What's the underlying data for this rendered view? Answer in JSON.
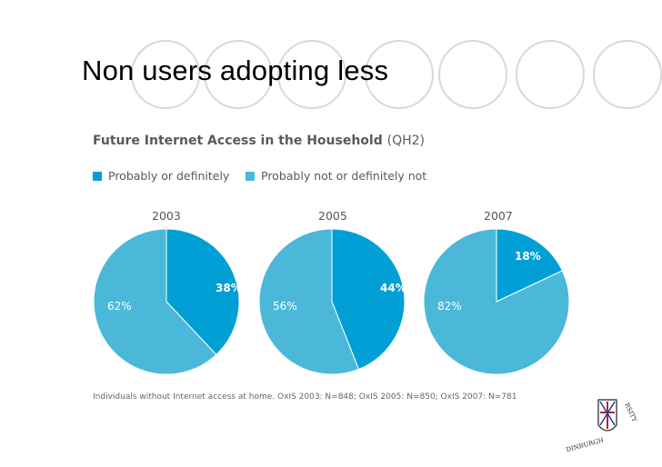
{
  "slide": {
    "title": "Non users adopting less"
  },
  "colors": {
    "probably": "#00A0D6",
    "not": "#4BB8D9",
    "ring": "#D9D9D9",
    "label_light": "#ffffff",
    "label_dark": "#ffffff"
  },
  "chart_data": {
    "type": "pie",
    "title": "Future Internet Access in the Household",
    "title_suffix": "(QH2)",
    "legend": [
      {
        "name": "Probably or definitely",
        "color": "#00A0D6"
      },
      {
        "name": "Probably not or definitely not",
        "color": "#4BB8D9"
      }
    ],
    "pies": [
      {
        "year": "2003",
        "slices": [
          {
            "name": "Probably or definitely",
            "value": 38,
            "label": "38%"
          },
          {
            "name": "Probably not or definitely not",
            "value": 62,
            "label": "62%"
          }
        ]
      },
      {
        "year": "2005",
        "slices": [
          {
            "name": "Probably or definitely",
            "value": 44,
            "label": "44%"
          },
          {
            "name": "Probably not or definitely not",
            "value": 56,
            "label": "56%"
          }
        ]
      },
      {
        "year": "2007",
        "slices": [
          {
            "name": "Probably or definitely",
            "value": 18,
            "label": "18%"
          },
          {
            "name": "Probably not or definitely not",
            "value": 82,
            "label": "82%"
          }
        ]
      }
    ],
    "footnote": "Individuals without Internet access at home. OxIS 2003: N=848; OxIS 2005: N=850; OxIS 2007: N=781"
  },
  "logo": {
    "text_right": "RSITY",
    "text_bottom": "DINBURGH"
  }
}
